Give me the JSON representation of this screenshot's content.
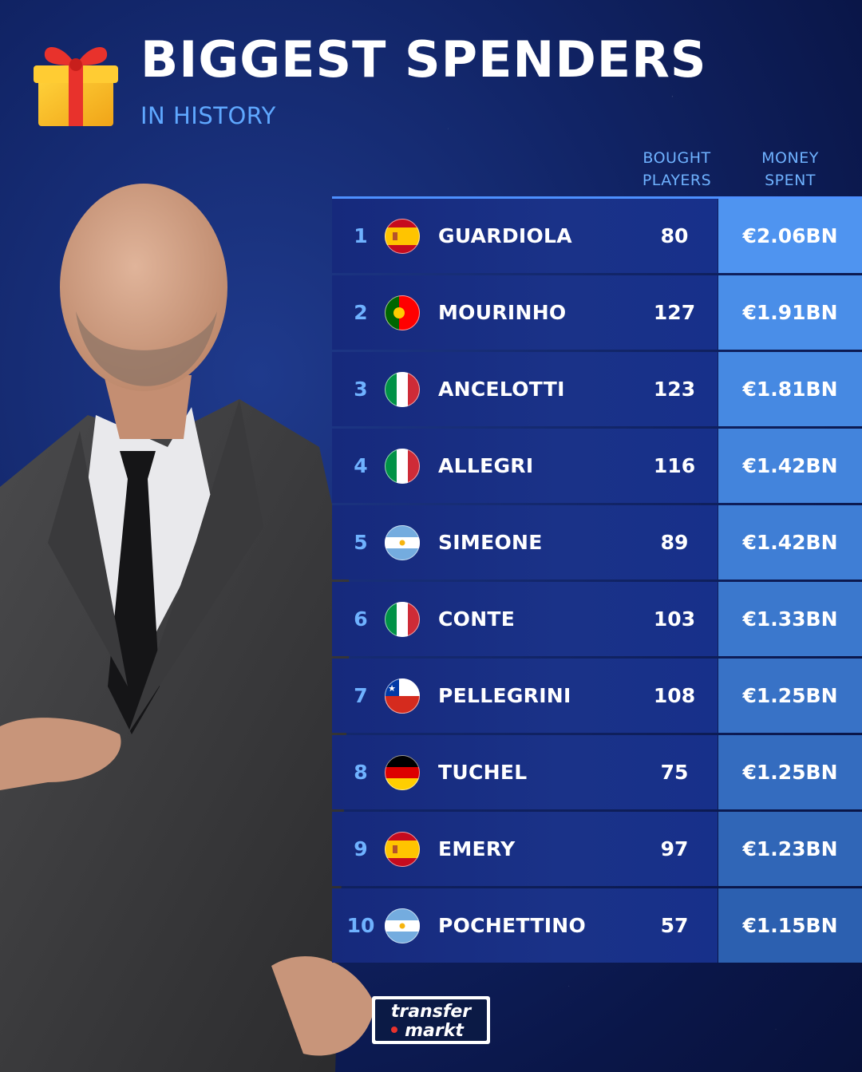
{
  "header": {
    "title": "BIGGEST SPENDERS",
    "subtitle": "IN HISTORY"
  },
  "columns": {
    "bought": "BOUGHT\nPLAYERS",
    "money": "MONEY\nSPENT"
  },
  "colors": {
    "accent": "#6fb2ff",
    "row_bg": "#16297c",
    "money_shades": [
      "#4f94f0",
      "#4a8ee8",
      "#4689e2",
      "#4384dc",
      "#3f7ed5",
      "#3b78cd",
      "#3872c6",
      "#346cbf",
      "#3066b7",
      "#2c60b0"
    ]
  },
  "rows": [
    {
      "rank": "1",
      "flag": "spain",
      "name": "GUARDIOLA",
      "players": "80",
      "money": "€2.06BN"
    },
    {
      "rank": "2",
      "flag": "portugal",
      "name": "MOURINHO",
      "players": "127",
      "money": "€1.91BN"
    },
    {
      "rank": "3",
      "flag": "italy",
      "name": "ANCELOTTI",
      "players": "123",
      "money": "€1.81BN"
    },
    {
      "rank": "4",
      "flag": "italy",
      "name": "ALLEGRI",
      "players": "116",
      "money": "€1.42BN"
    },
    {
      "rank": "5",
      "flag": "argentina",
      "name": "SIMEONE",
      "players": "89",
      "money": "€1.42BN"
    },
    {
      "rank": "6",
      "flag": "italy",
      "name": "CONTE",
      "players": "103",
      "money": "€1.33BN"
    },
    {
      "rank": "7",
      "flag": "chile",
      "name": "PELLEGRINI",
      "players": "108",
      "money": "€1.25BN"
    },
    {
      "rank": "8",
      "flag": "germany",
      "name": "TUCHEL",
      "players": "75",
      "money": "€1.25BN"
    },
    {
      "rank": "9",
      "flag": "spain",
      "name": "EMERY",
      "players": "97",
      "money": "€1.23BN"
    },
    {
      "rank": "10",
      "flag": "argentina",
      "name": "POCHETTINO",
      "players": "57",
      "money": "€1.15BN"
    }
  ],
  "brand": {
    "line1": "transfer",
    "line2": "markt"
  }
}
